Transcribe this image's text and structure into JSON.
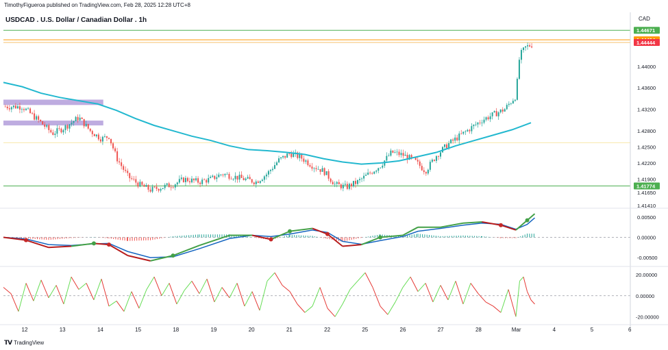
{
  "header": {
    "published": "TimothyFigueroa published on TradingView.com, Feb 28, 2025 12:28 UTC+8"
  },
  "title": "USDCAD . U.S. Dollar / Canadian Dollar . 1h",
  "currency": "CAD",
  "footer": {
    "brand": "TradingView"
  },
  "colors": {
    "up_candle": "#26a69a",
    "down_candle": "#ef5350",
    "ma_line": "#22b8cf",
    "zone": "#b39ddb",
    "support_line": "#4caf50",
    "orange_line": "#ff9800",
    "macd_fast": "#2e7d32",
    "macd_slow": "#1565c0",
    "osc_up": "#66dd55",
    "osc_down": "#e53935"
  },
  "chart_data": [
    {
      "type": "candlestick",
      "title": "USDCAD . U.S. Dollar / Canadian Dollar . 1h",
      "x_ticks": [
        "12",
        "13",
        "14",
        "15",
        "18",
        "19",
        "20",
        "21",
        "22",
        "25",
        "26",
        "27",
        "28",
        "Mar",
        "4",
        "5",
        "6"
      ],
      "y_ticks": [
        1.4141,
        1.4165,
        1.419,
        1.422,
        1.425,
        1.428,
        1.432,
        1.436,
        1.44
      ],
      "ylim": [
        1.4141,
        1.4475
      ],
      "price_labels": [
        {
          "value": "1.44671",
          "color": "#4caf50"
        },
        {
          "value": "1.44494",
          "color": "#ff9800"
        },
        {
          "value": "1.44444",
          "color": "#f23645"
        },
        {
          "value": "1.41774",
          "color": "#4caf50"
        }
      ],
      "horizontal_lines": [
        {
          "value": 1.44671,
          "color": "#4caf50"
        },
        {
          "value": 1.44494,
          "color": "#ff9800"
        },
        {
          "value": 1.44444,
          "color": "#f5c26b"
        },
        {
          "value": 1.41774,
          "color": "#4caf50"
        },
        {
          "value": 1.4258,
          "color": "#f5e08a"
        }
      ],
      "zones": [
        {
          "from_day": 11.0,
          "to_day": 13.65,
          "low": 1.4328,
          "high": 1.4338
        },
        {
          "from_day": 11.0,
          "to_day": 13.65,
          "low": 1.429,
          "high": 1.4299
        }
      ],
      "close_path": [
        [
          11.0,
          1.4325
        ],
        [
          11.5,
          1.4325
        ],
        [
          12.0,
          1.4295
        ],
        [
          12.3,
          1.4275
        ],
        [
          12.6,
          1.4285
        ],
        [
          13.0,
          1.4305
        ],
        [
          13.3,
          1.428
        ],
        [
          13.6,
          1.4265
        ],
        [
          13.8,
          1.427
        ],
        [
          14.0,
          1.423
        ],
        [
          14.3,
          1.4195
        ],
        [
          14.6,
          1.418
        ],
        [
          14.9,
          1.417
        ],
        [
          15.2,
          1.4175
        ],
        [
          15.5,
          1.418
        ],
        [
          15.8,
          1.419
        ],
        [
          16.2,
          1.4185
        ],
        [
          16.5,
          1.419
        ],
        [
          16.8,
          1.42
        ],
        [
          17.1,
          1.4195
        ],
        [
          17.4,
          1.419
        ],
        [
          17.7,
          1.4185
        ],
        [
          18.0,
          1.42
        ],
        [
          18.3,
          1.4225
        ],
        [
          18.6,
          1.4238
        ],
        [
          18.9,
          1.423
        ],
        [
          19.2,
          1.4215
        ],
        [
          19.5,
          1.4205
        ],
        [
          19.8,
          1.418
        ],
        [
          20.1,
          1.4175
        ],
        [
          20.4,
          1.4185
        ],
        [
          20.7,
          1.42
        ],
        [
          21.0,
          1.4215
        ],
        [
          21.3,
          1.424
        ],
        [
          21.6,
          1.4235
        ],
        [
          21.9,
          1.4225
        ],
        [
          22.2,
          1.4205
        ],
        [
          22.5,
          1.4235
        ],
        [
          22.8,
          1.4255
        ],
        [
          23.1,
          1.427
        ],
        [
          23.4,
          1.4285
        ],
        [
          23.7,
          1.43
        ],
        [
          24.0,
          1.431
        ],
        [
          24.3,
          1.432
        ],
        [
          24.6,
          1.4345
        ],
        [
          24.7,
          1.442
        ],
        [
          24.85,
          1.4435
        ],
        [
          25.0,
          1.444
        ]
      ],
      "ma_path": [
        [
          11.0,
          1.437
        ],
        [
          11.5,
          1.4362
        ],
        [
          12.0,
          1.435
        ],
        [
          12.5,
          1.4342
        ],
        [
          13.0,
          1.4336
        ],
        [
          13.5,
          1.433
        ],
        [
          14.0,
          1.4318
        ],
        [
          14.5,
          1.4303
        ],
        [
          15.0,
          1.429
        ],
        [
          15.5,
          1.428
        ],
        [
          16.0,
          1.427
        ],
        [
          16.5,
          1.4262
        ],
        [
          17.0,
          1.4252
        ],
        [
          17.5,
          1.4245
        ],
        [
          18.0,
          1.4243
        ],
        [
          18.5,
          1.424
        ],
        [
          19.0,
          1.4236
        ],
        [
          19.5,
          1.4228
        ],
        [
          20.0,
          1.4222
        ],
        [
          20.5,
          1.4218
        ],
        [
          21.0,
          1.422
        ],
        [
          21.5,
          1.4224
        ],
        [
          22.0,
          1.4232
        ],
        [
          22.5,
          1.424
        ],
        [
          23.0,
          1.4252
        ],
        [
          23.5,
          1.4262
        ],
        [
          24.0,
          1.4272
        ],
        [
          24.5,
          1.4282
        ],
        [
          25.0,
          1.4295
        ]
      ]
    },
    {
      "type": "line",
      "name": "MACD-style indicator",
      "y_ticks": [
        0.005,
        0.0,
        -0.005
      ],
      "ylim": [
        -0.0065,
        0.0065
      ],
      "series": [
        {
          "points": [
            [
              11.0,
              0.0
            ],
            [
              11.6,
              -0.0007
            ],
            [
              12.2,
              -0.0025
            ],
            [
              12.8,
              -0.0022
            ],
            [
              13.4,
              -0.0015
            ],
            [
              13.8,
              -0.0018
            ],
            [
              14.3,
              -0.0045
            ],
            [
              14.9,
              -0.0058
            ],
            [
              15.5,
              -0.0045
            ],
            [
              16.2,
              -0.002
            ],
            [
              17.0,
              0.0005
            ],
            [
              17.6,
              0.0005
            ],
            [
              18.1,
              -0.0005
            ],
            [
              18.6,
              0.0015
            ],
            [
              19.2,
              0.0022
            ],
            [
              19.6,
              0.0008
            ],
            [
              20.0,
              -0.0022
            ],
            [
              20.5,
              -0.0018
            ],
            [
              21.0,
              0.0
            ],
            [
              21.6,
              0.0005
            ],
            [
              22.0,
              0.0025
            ],
            [
              22.6,
              0.0025
            ],
            [
              23.2,
              0.0035
            ],
            [
              23.7,
              0.0038
            ],
            [
              24.2,
              0.003
            ],
            [
              24.6,
              0.0018
            ],
            [
              24.9,
              0.0042
            ],
            [
              25.1,
              0.0058
            ]
          ]
        },
        {
          "points": [
            [
              11.0,
              0.0
            ],
            [
              11.6,
              -0.0004
            ],
            [
              12.2,
              -0.0018
            ],
            [
              12.8,
              -0.002
            ],
            [
              13.4,
              -0.0016
            ],
            [
              13.8,
              -0.0015
            ],
            [
              14.3,
              -0.0035
            ],
            [
              14.9,
              -0.005
            ],
            [
              15.5,
              -0.0048
            ],
            [
              16.2,
              -0.0028
            ],
            [
              17.0,
              -0.0003
            ],
            [
              17.6,
              0.0005
            ],
            [
              18.1,
              0.0002
            ],
            [
              18.6,
              0.0008
            ],
            [
              19.2,
              0.0018
            ],
            [
              19.6,
              0.0012
            ],
            [
              20.0,
              -0.001
            ],
            [
              20.5,
              -0.0017
            ],
            [
              21.0,
              -0.0008
            ],
            [
              21.6,
              0.0002
            ],
            [
              22.0,
              0.0015
            ],
            [
              22.6,
              0.0022
            ],
            [
              23.2,
              0.003
            ],
            [
              23.7,
              0.0035
            ],
            [
              24.2,
              0.0032
            ],
            [
              24.6,
              0.002
            ],
            [
              24.9,
              0.0032
            ],
            [
              25.1,
              0.0048
            ]
          ]
        }
      ]
    },
    {
      "type": "line",
      "name": "Oscillator",
      "y_ticks": [
        20.0,
        0.0,
        -20.0
      ],
      "ylim": [
        -25,
        26
      ],
      "series": [
        {
          "points": [
            [
              11.0,
              8
            ],
            [
              11.2,
              2
            ],
            [
              11.4,
              -15
            ],
            [
              11.6,
              12
            ],
            [
              11.8,
              -5
            ],
            [
              12.0,
              15
            ],
            [
              12.2,
              -2
            ],
            [
              12.4,
              10
            ],
            [
              12.6,
              -8
            ],
            [
              12.8,
              18
            ],
            [
              13.0,
              6
            ],
            [
              13.2,
              12
            ],
            [
              13.4,
              -4
            ],
            [
              13.6,
              16
            ],
            [
              13.8,
              -10
            ],
            [
              14.0,
              -5
            ],
            [
              14.2,
              -15
            ],
            [
              14.4,
              4
            ],
            [
              14.6,
              -12
            ],
            [
              14.8,
              6
            ],
            [
              15.0,
              18
            ],
            [
              15.2,
              0
            ],
            [
              15.4,
              12
            ],
            [
              15.6,
              -8
            ],
            [
              15.8,
              5
            ],
            [
              16.0,
              14
            ],
            [
              16.2,
              2
            ],
            [
              16.4,
              16
            ],
            [
              16.6,
              -6
            ],
            [
              16.8,
              8
            ],
            [
              17.0,
              -2
            ],
            [
              17.2,
              12
            ],
            [
              17.4,
              -10
            ],
            [
              17.6,
              4
            ],
            [
              17.8,
              -14
            ],
            [
              18.0,
              14
            ],
            [
              18.2,
              22
            ],
            [
              18.4,
              10
            ],
            [
              18.6,
              4
            ],
            [
              18.8,
              -8
            ],
            [
              19.0,
              -16
            ],
            [
              19.2,
              -10
            ],
            [
              19.4,
              8
            ],
            [
              19.6,
              -12
            ],
            [
              19.8,
              -20
            ],
            [
              20.0,
              -8
            ],
            [
              20.2,
              6
            ],
            [
              20.4,
              14
            ],
            [
              20.6,
              22
            ],
            [
              20.8,
              8
            ],
            [
              21.0,
              -10
            ],
            [
              21.2,
              -18
            ],
            [
              21.4,
              -6
            ],
            [
              21.6,
              8
            ],
            [
              21.8,
              18
            ],
            [
              22.0,
              4
            ],
            [
              22.2,
              12
            ],
            [
              22.4,
              -6
            ],
            [
              22.6,
              10
            ],
            [
              22.8,
              -4
            ],
            [
              23.0,
              14
            ],
            [
              23.2,
              -8
            ],
            [
              23.4,
              12
            ],
            [
              23.6,
              2
            ],
            [
              23.8,
              -6
            ],
            [
              24.0,
              -10
            ],
            [
              24.2,
              -16
            ],
            [
              24.4,
              6
            ],
            [
              24.6,
              -20
            ],
            [
              24.7,
              14
            ],
            [
              24.8,
              18
            ],
            [
              24.9,
              4
            ],
            [
              25.0,
              -4
            ],
            [
              25.1,
              -8
            ]
          ]
        }
      ]
    }
  ]
}
